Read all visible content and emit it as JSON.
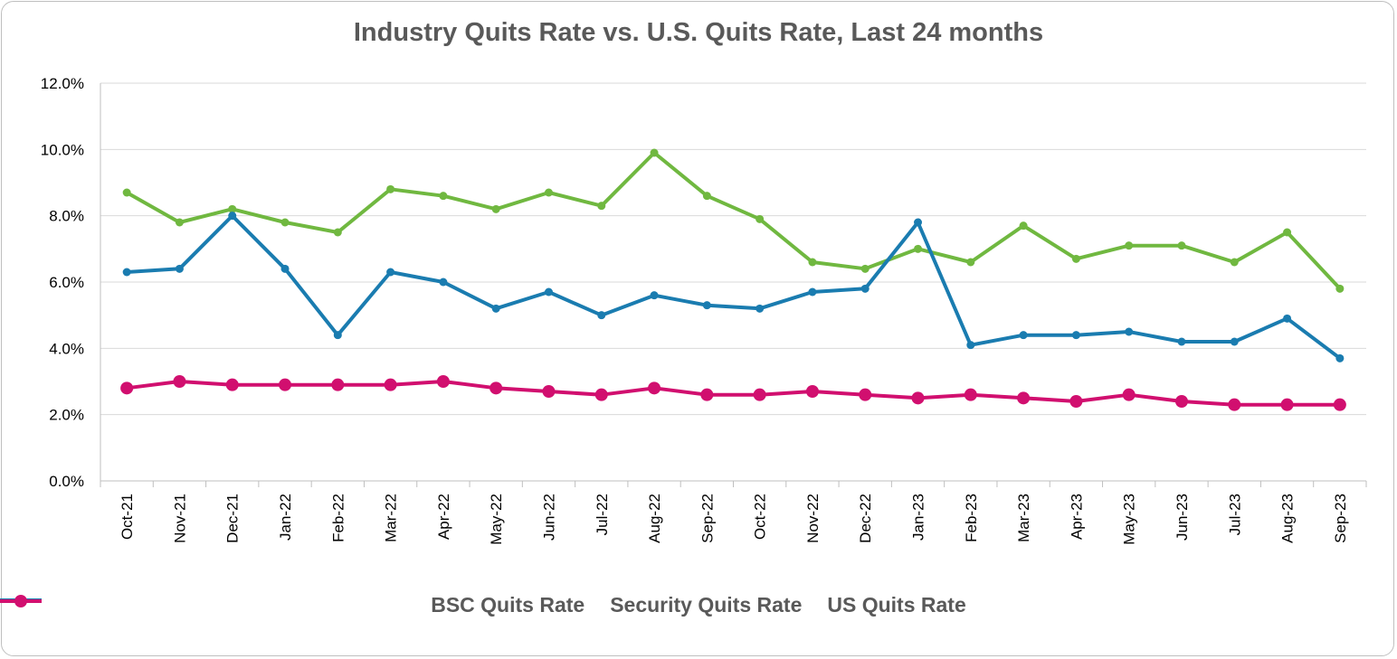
{
  "chart_data": {
    "type": "line",
    "title": "Industry Quits Rate vs. U.S. Quits Rate, Last 24 months",
    "xlabel": "",
    "ylabel": "",
    "ylim": [
      0,
      12
    ],
    "yticks": [
      "0.0%",
      "2.0%",
      "4.0%",
      "6.0%",
      "8.0%",
      "10.0%",
      "12.0%"
    ],
    "grid": true,
    "legend_position": "bottom",
    "categories": [
      "Oct-21",
      "Nov-21",
      "Dec-21",
      "Jan-22",
      "Feb-22",
      "Mar-22",
      "Apr-22",
      "May-22",
      "Jun-22",
      "Jul-22",
      "Aug-22",
      "Sep-22",
      "Oct-22",
      "Nov-22",
      "Dec-22",
      "Jan-23",
      "Feb-23",
      "Mar-23",
      "Apr-23",
      "May-23",
      "Jun-23",
      "Jul-23",
      "Aug-23",
      "Sep-23"
    ],
    "series": [
      {
        "name": "BSC Quits Rate",
        "color": "#70b840",
        "marker": "small-circle",
        "values": [
          8.7,
          7.8,
          8.2,
          7.8,
          7.5,
          8.8,
          8.6,
          8.2,
          8.7,
          8.3,
          9.9,
          8.6,
          7.9,
          6.6,
          6.4,
          7.0,
          6.6,
          7.7,
          6.7,
          7.1,
          7.1,
          6.6,
          7.5,
          5.8
        ]
      },
      {
        "name": "Security Quits Rate",
        "color": "#1a7cb0",
        "marker": "small-circle",
        "values": [
          6.3,
          6.4,
          8.0,
          6.4,
          4.4,
          6.3,
          6.0,
          5.2,
          5.7,
          5.0,
          5.6,
          5.3,
          5.2,
          5.7,
          5.8,
          7.8,
          4.1,
          4.4,
          4.4,
          4.5,
          4.2,
          4.2,
          4.9,
          3.7
        ]
      },
      {
        "name": "US Quits Rate",
        "color": "#d10f6f",
        "marker": "large-circle",
        "values": [
          2.8,
          3.0,
          2.9,
          2.9,
          2.9,
          2.9,
          3.0,
          2.8,
          2.7,
          2.6,
          2.8,
          2.6,
          2.6,
          2.7,
          2.6,
          2.5,
          2.6,
          2.5,
          2.4,
          2.6,
          2.4,
          2.3,
          2.3,
          2.3
        ]
      }
    ]
  }
}
